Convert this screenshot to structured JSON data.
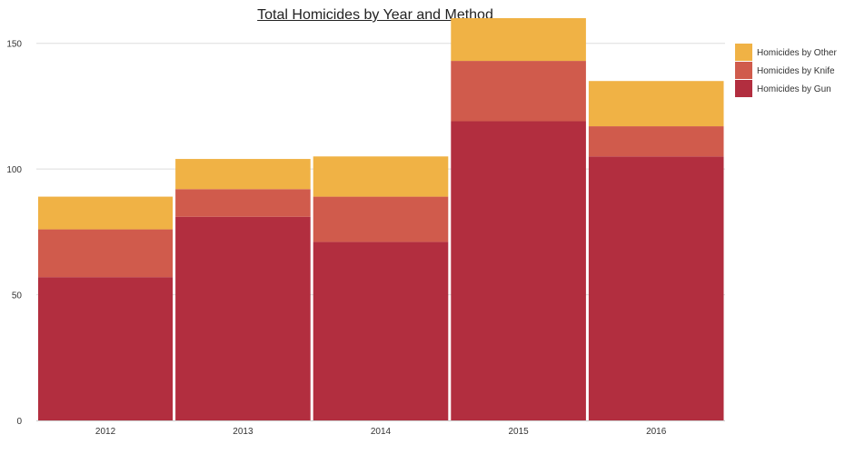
{
  "chart_data": {
    "type": "bar",
    "stacked": true,
    "title": "Total Homicides by Year and Method",
    "xlabel": "",
    "ylabel": "",
    "categories": [
      "2012",
      "2013",
      "2014",
      "2015",
      "2016"
    ],
    "series": [
      {
        "name": "Homicides by Gun",
        "color": "#b22e3f",
        "values": [
          57,
          81,
          71,
          119,
          105
        ]
      },
      {
        "name": "Homicides by Knife",
        "color": "#d05b4c",
        "values": [
          19,
          11,
          18,
          24,
          12
        ]
      },
      {
        "name": "Homicides by Other",
        "color": "#f0b245",
        "values": [
          13,
          12,
          16,
          17,
          18
        ]
      }
    ],
    "ylim": [
      0,
      160
    ],
    "yticks": [
      0,
      50,
      100,
      150
    ],
    "grid": true,
    "legend": "top-right",
    "legend_order": [
      "Homicides by Other",
      "Homicides by Knife",
      "Homicides by Gun"
    ]
  }
}
